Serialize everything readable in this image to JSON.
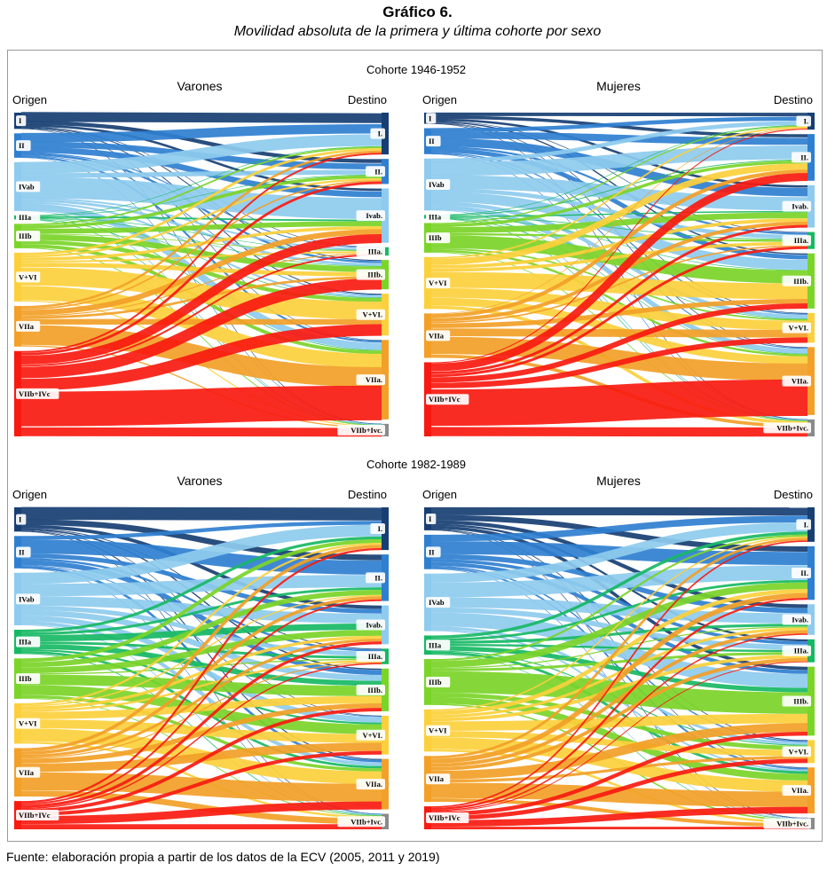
{
  "title": "Gráfico 6.",
  "subtitle": "Movilidad absoluta de la primera y última cohorte por sexo",
  "source": "Fuente: elaboración propia a partir de los datos de la ECV (2005, 2011 y 2019)",
  "origin_label": "Origen",
  "destination_label": "Destino",
  "cohorts": [
    "Cohorte 1946-1952",
    "Cohorte 1982-1989"
  ],
  "colors": {
    "I": "#173f73",
    "II": "#2f7fd0",
    "IVab": "#8ecbee",
    "IIIa": "#17b864",
    "IIIb": "#7bd428",
    "V+VI": "#fcd03c",
    "VIIa": "#f2a027",
    "VIIb+IVc": "#f81a10"
  },
  "chart_data": [
    {
      "type": "sankey",
      "cohort": "Cohorte 1946-1952",
      "sex": "Varones",
      "origin_classes": [
        "I",
        "II",
        "IVab",
        "IIIa",
        "IIIb",
        "V+VI",
        "VIIa",
        "VIIb+IVc"
      ],
      "origin_totals": [
        4,
        6,
        12,
        1,
        6,
        12,
        10,
        21
      ],
      "destination_classes": [
        "I.",
        "II.",
        "Ivab.",
        "IIIa.",
        "IIIb.",
        "V+VI.",
        "VIIa.",
        "VIIb+Ivc."
      ],
      "destination_totals": [
        10,
        6,
        13,
        2,
        7,
        10,
        19,
        3
      ]
    },
    {
      "type": "sankey",
      "cohort": "Cohorte 1946-1952",
      "sex": "Mujeres",
      "origin_classes": [
        "I",
        "II",
        "IVab",
        "IIIa",
        "IIIb",
        "V+VI",
        "VIIa",
        "VIIb+IVc"
      ],
      "origin_totals": [
        3,
        7,
        14,
        1,
        8,
        14,
        12,
        20
      ],
      "destination_classes": [
        "I.",
        "II.",
        "Ivab.",
        "IIIa.",
        "IIIb.",
        "V+VI.",
        "VIIa.",
        "VIIb+Ivc."
      ],
      "destination_totals": [
        4,
        11,
        10,
        4,
        13,
        7,
        16,
        4
      ]
    },
    {
      "type": "sankey",
      "cohort": "Cohorte 1982-1989",
      "sex": "Varones",
      "origin_classes": [
        "I",
        "II",
        "IVab",
        "IIIa",
        "IIIb",
        "V+VI",
        "VIIa",
        "VIIb+IVc"
      ],
      "origin_totals": [
        6,
        8,
        13,
        6,
        10,
        10,
        12,
        7
      ],
      "destination_classes": [
        "I.",
        "II.",
        "Ivab.",
        "IIIa.",
        "IIIb.",
        "V+VI.",
        "VIIa.",
        "VIIb+Ivc."
      ],
      "destination_totals": [
        11,
        12,
        10,
        4,
        11,
        10,
        13,
        4
      ]
    },
    {
      "type": "sankey",
      "cohort": "Cohorte 1982-1989",
      "sex": "Mujeres",
      "origin_classes": [
        "I",
        "II",
        "IVab",
        "IIIa",
        "IIIb",
        "V+VI",
        "VIIa",
        "VIIb+IVc"
      ],
      "origin_totals": [
        6,
        9,
        15,
        5,
        12,
        11,
        12,
        6
      ],
      "destination_classes": [
        "I.",
        "II.",
        "Ivab.",
        "IIIa.",
        "IIIb.",
        "V+VI.",
        "VIIa.",
        "VIIb+Ivc."
      ],
      "destination_totals": [
        9,
        14,
        8,
        6,
        18,
        6,
        12,
        3
      ]
    }
  ]
}
